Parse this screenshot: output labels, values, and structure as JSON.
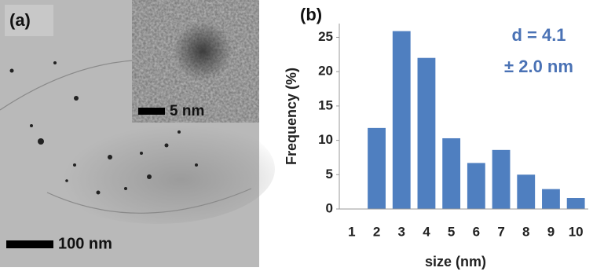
{
  "image": {
    "panel_label": "(a)",
    "inset_scale": "5 nm",
    "scale": "100 nm"
  },
  "chart_data": {
    "type": "bar",
    "panel_label": "(b)",
    "x_label": "size (nm)",
    "y_label": "Frequency (%)",
    "annotations": [
      "d = 4.1",
      "± 2.0 nm"
    ],
    "categories": [
      "1",
      "2",
      "3",
      "4",
      "5",
      "6",
      "7",
      "8",
      "9",
      "10"
    ],
    "values": [
      0,
      11.8,
      25.9,
      22,
      10.3,
      6.7,
      8.6,
      5,
      2.9,
      1.6
    ],
    "color": "#4f7fc0",
    "ylim": [
      0,
      27
    ],
    "yticks": [
      0,
      5,
      10,
      15,
      20,
      25
    ],
    "grid": false
  }
}
